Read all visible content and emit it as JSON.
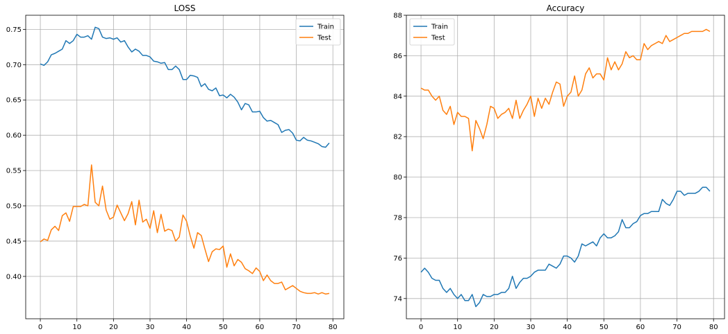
{
  "colors": {
    "train": "#1f77b4",
    "test": "#ff7f0e",
    "grid": "#b0b0b0"
  },
  "chart_data": [
    {
      "type": "line",
      "title": "LOSS",
      "xlabel": "",
      "ylabel": "",
      "xlim": [
        -4,
        83
      ],
      "ylim": [
        0.34,
        0.77
      ],
      "xticks": [
        0,
        10,
        20,
        30,
        40,
        50,
        60,
        70,
        80
      ],
      "yticks": [
        0.4,
        0.45,
        0.5,
        0.55,
        0.6,
        0.65,
        0.7,
        0.75
      ],
      "ytick_labels": [
        "0.40",
        "0.45",
        "0.50",
        "0.55",
        "0.60",
        "0.65",
        "0.70",
        "0.75"
      ],
      "grid": true,
      "legend_position": "top-right",
      "series": [
        {
          "name": "Train",
          "color": "#1f77b4",
          "x": [
            0,
            1,
            2,
            3,
            4,
            5,
            6,
            7,
            8,
            9,
            10,
            11,
            12,
            13,
            14,
            15,
            16,
            17,
            18,
            19,
            20,
            21,
            22,
            23,
            24,
            25,
            26,
            27,
            28,
            29,
            30,
            31,
            32,
            33,
            34,
            35,
            36,
            37,
            38,
            39,
            40,
            41,
            42,
            43,
            44,
            45,
            46,
            47,
            48,
            49,
            50,
            51,
            52,
            53,
            54,
            55,
            56,
            57,
            58,
            59,
            60,
            61,
            62,
            63,
            64,
            65,
            66,
            67,
            68,
            69,
            70,
            71,
            72,
            73,
            74,
            75,
            76,
            77,
            78,
            79
          ],
          "values": [
            0.701,
            0.699,
            0.704,
            0.714,
            0.716,
            0.719,
            0.722,
            0.734,
            0.73,
            0.734,
            0.743,
            0.739,
            0.739,
            0.741,
            0.736,
            0.753,
            0.751,
            0.739,
            0.737,
            0.738,
            0.736,
            0.738,
            0.732,
            0.734,
            0.725,
            0.718,
            0.722,
            0.719,
            0.713,
            0.713,
            0.711,
            0.705,
            0.704,
            0.702,
            0.703,
            0.693,
            0.693,
            0.698,
            0.693,
            0.679,
            0.679,
            0.685,
            0.684,
            0.682,
            0.669,
            0.673,
            0.665,
            0.663,
            0.667,
            0.656,
            0.657,
            0.653,
            0.658,
            0.654,
            0.647,
            0.636,
            0.645,
            0.643,
            0.633,
            0.633,
            0.634,
            0.625,
            0.62,
            0.621,
            0.618,
            0.615,
            0.604,
            0.607,
            0.608,
            0.603,
            0.593,
            0.592,
            0.597,
            0.593,
            0.592,
            0.59,
            0.588,
            0.584,
            0.583,
            0.589
          ]
        },
        {
          "name": "Test",
          "color": "#ff7f0e",
          "x": [
            0,
            1,
            2,
            3,
            4,
            5,
            6,
            7,
            8,
            9,
            10,
            11,
            12,
            13,
            14,
            15,
            16,
            17,
            18,
            19,
            20,
            21,
            22,
            23,
            24,
            25,
            26,
            27,
            28,
            29,
            30,
            31,
            32,
            33,
            34,
            35,
            36,
            37,
            38,
            39,
            40,
            41,
            42,
            43,
            44,
            45,
            46,
            47,
            48,
            49,
            50,
            51,
            52,
            53,
            54,
            55,
            56,
            57,
            58,
            59,
            60,
            61,
            62,
            63,
            64,
            65,
            66,
            67,
            68,
            69,
            70,
            71,
            72,
            73,
            74,
            75,
            76,
            77,
            78,
            79
          ],
          "values": [
            0.449,
            0.453,
            0.451,
            0.466,
            0.471,
            0.465,
            0.486,
            0.49,
            0.478,
            0.499,
            0.499,
            0.499,
            0.502,
            0.5,
            0.558,
            0.505,
            0.5,
            0.528,
            0.494,
            0.481,
            0.484,
            0.501,
            0.49,
            0.479,
            0.489,
            0.506,
            0.473,
            0.508,
            0.477,
            0.481,
            0.468,
            0.493,
            0.462,
            0.488,
            0.464,
            0.467,
            0.465,
            0.45,
            0.456,
            0.487,
            0.478,
            0.457,
            0.44,
            0.462,
            0.458,
            0.439,
            0.421,
            0.435,
            0.439,
            0.438,
            0.443,
            0.413,
            0.432,
            0.415,
            0.424,
            0.42,
            0.411,
            0.408,
            0.404,
            0.412,
            0.407,
            0.394,
            0.402,
            0.394,
            0.39,
            0.39,
            0.392,
            0.381,
            0.384,
            0.387,
            0.383,
            0.379,
            0.377,
            0.376,
            0.376,
            0.377,
            0.375,
            0.377,
            0.375,
            0.376
          ]
        }
      ]
    },
    {
      "type": "line",
      "title": "Accuracy",
      "xlabel": "",
      "ylabel": "",
      "xlim": [
        -4,
        83
      ],
      "ylim": [
        73.0,
        88.0
      ],
      "xticks": [
        0,
        10,
        20,
        30,
        40,
        50,
        60,
        70,
        80
      ],
      "yticks": [
        74,
        76,
        78,
        80,
        82,
        84,
        86,
        88
      ],
      "ytick_labels": [
        "74",
        "76",
        "78",
        "80",
        "82",
        "84",
        "86",
        "88"
      ],
      "grid": true,
      "legend_position": "top-left",
      "series": [
        {
          "name": "Train",
          "color": "#1f77b4",
          "x": [
            0,
            1,
            2,
            3,
            4,
            5,
            6,
            7,
            8,
            9,
            10,
            11,
            12,
            13,
            14,
            15,
            16,
            17,
            18,
            19,
            20,
            21,
            22,
            23,
            24,
            25,
            26,
            27,
            28,
            29,
            30,
            31,
            32,
            33,
            34,
            35,
            36,
            37,
            38,
            39,
            40,
            41,
            42,
            43,
            44,
            45,
            46,
            47,
            48,
            49,
            50,
            51,
            52,
            53,
            54,
            55,
            56,
            57,
            58,
            59,
            60,
            61,
            62,
            63,
            64,
            65,
            66,
            67,
            68,
            69,
            70,
            71,
            72,
            73,
            74,
            75,
            76,
            77,
            78,
            79
          ],
          "values": [
            75.3,
            75.5,
            75.3,
            75.0,
            74.9,
            74.9,
            74.5,
            74.3,
            74.5,
            74.2,
            74.0,
            74.2,
            73.9,
            73.9,
            74.2,
            73.6,
            73.8,
            74.2,
            74.1,
            74.1,
            74.2,
            74.2,
            74.3,
            74.3,
            74.5,
            75.1,
            74.5,
            74.8,
            75.0,
            75.0,
            75.1,
            75.3,
            75.4,
            75.4,
            75.4,
            75.7,
            75.6,
            75.5,
            75.7,
            76.1,
            76.1,
            76.0,
            75.8,
            76.1,
            76.7,
            76.6,
            76.7,
            76.8,
            76.6,
            77.0,
            77.2,
            77.0,
            77.0,
            77.1,
            77.3,
            77.9,
            77.5,
            77.5,
            77.7,
            77.8,
            78.1,
            78.2,
            78.2,
            78.3,
            78.3,
            78.3,
            78.9,
            78.7,
            78.6,
            78.9,
            79.3,
            79.3,
            79.1,
            79.2,
            79.2,
            79.2,
            79.3,
            79.5,
            79.5,
            79.3
          ]
        },
        {
          "name": "Test",
          "color": "#ff7f0e",
          "x": [
            0,
            1,
            2,
            3,
            4,
            5,
            6,
            7,
            8,
            9,
            10,
            11,
            12,
            13,
            14,
            15,
            16,
            17,
            18,
            19,
            20,
            21,
            22,
            23,
            24,
            25,
            26,
            27,
            28,
            29,
            30,
            31,
            32,
            33,
            34,
            35,
            36,
            37,
            38,
            39,
            40,
            41,
            42,
            43,
            44,
            45,
            46,
            47,
            48,
            49,
            50,
            51,
            52,
            53,
            54,
            55,
            56,
            57,
            58,
            59,
            60,
            61,
            62,
            63,
            64,
            65,
            66,
            67,
            68,
            69,
            70,
            71,
            72,
            73,
            74,
            75,
            76,
            77,
            78,
            79
          ],
          "values": [
            84.4,
            84.3,
            84.3,
            84.0,
            83.8,
            84.0,
            83.3,
            83.1,
            83.5,
            82.6,
            83.2,
            83.0,
            83.0,
            82.9,
            81.3,
            82.8,
            82.4,
            81.9,
            82.6,
            83.5,
            83.4,
            82.9,
            83.1,
            83.2,
            83.4,
            82.9,
            83.8,
            82.9,
            83.3,
            83.6,
            84.0,
            83.0,
            83.9,
            83.4,
            83.9,
            83.6,
            84.2,
            84.7,
            84.6,
            83.5,
            84.0,
            84.2,
            85.0,
            84.0,
            84.3,
            85.1,
            85.4,
            84.9,
            85.1,
            85.1,
            84.8,
            85.9,
            85.3,
            85.7,
            85.3,
            85.6,
            86.2,
            85.9,
            86.0,
            85.8,
            85.8,
            86.6,
            86.3,
            86.5,
            86.6,
            86.7,
            86.6,
            87.0,
            86.7,
            86.8,
            86.9,
            87.0,
            87.1,
            87.1,
            87.2,
            87.2,
            87.2,
            87.2,
            87.3,
            87.2
          ]
        }
      ]
    }
  ]
}
